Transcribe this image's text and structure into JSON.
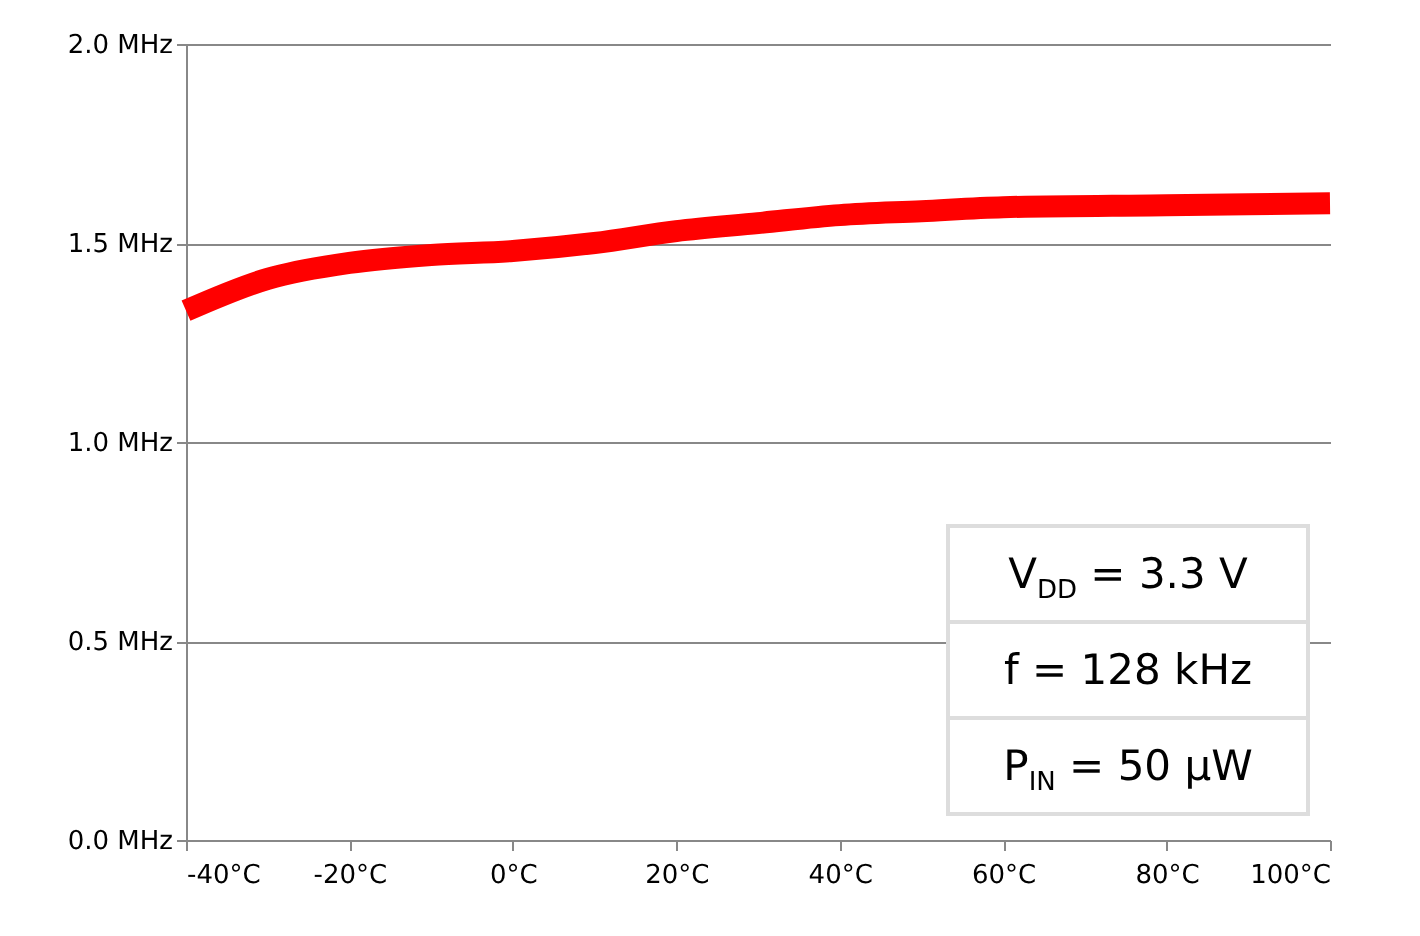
{
  "chart_data": {
    "type": "line",
    "x": [
      -40,
      -30,
      -20,
      -10,
      0,
      10,
      20,
      30,
      40,
      50,
      60,
      80,
      100
    ],
    "series": [
      {
        "color": "#ff0000",
        "values": [
          1.33,
          1.41,
          1.45,
          1.47,
          1.48,
          1.5,
          1.53,
          1.55,
          1.57,
          1.58,
          1.59,
          1.595,
          1.6
        ]
      }
    ],
    "xlim": [
      -40,
      100
    ],
    "xticks": [
      {
        "value": -40,
        "label": "-40°C"
      },
      {
        "value": -20,
        "label": "-20°C"
      },
      {
        "value": 0,
        "label": "0°C"
      },
      {
        "value": 20,
        "label": "20°C"
      },
      {
        "value": 40,
        "label": "40°C"
      },
      {
        "value": 60,
        "label": "60°C"
      },
      {
        "value": 80,
        "label": "80°C"
      },
      {
        "value": 100,
        "label": "100°C"
      }
    ],
    "ylim": [
      0,
      2
    ],
    "yticks": [
      {
        "value": 0,
        "label": "0.0 MHz"
      },
      {
        "value": 0.5,
        "label": "0.5 MHz"
      },
      {
        "value": 1,
        "label": "1.0 MHz"
      },
      {
        "value": 1.5,
        "label": "1.5 MHz"
      },
      {
        "value": 2,
        "label": "2.0 MHz"
      }
    ],
    "grid": "y",
    "marker": "none",
    "line_style": "solid",
    "annotations": [
      "V$_{DD}$ = 3.3 V",
      "f = 128 kHz",
      "P$_{IN}$ = 50 µW"
    ]
  }
}
